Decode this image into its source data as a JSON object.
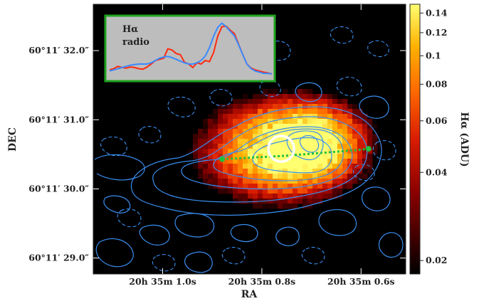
{
  "chart_data": {
    "type": "heatmap",
    "xlabel": "RA",
    "ylabel": "DEC",
    "colorbar_label": "Hα (ADU)",
    "colorbar_scale": "log",
    "colorbar_range": [
      0.018,
      0.15
    ],
    "colorbar_ticks": [
      {
        "value": 0.14,
        "label": "0.14"
      },
      {
        "value": 0.12,
        "label": "0.12"
      },
      {
        "value": 0.1,
        "label": "0.1"
      },
      {
        "value": 0.08,
        "label": "0.08"
      },
      {
        "value": 0.06,
        "label": "0.06"
      },
      {
        "value": 0.04,
        "label": "0.04"
      },
      {
        "value": 0.02,
        "label": "0.02"
      }
    ],
    "x_ticks": [
      {
        "value": 1.0,
        "label": "20h 35m 1.0s"
      },
      {
        "value": 0.8,
        "label": "20h 35m 0.8s"
      },
      {
        "value": 0.6,
        "label": "20h 35m 0.6s"
      }
    ],
    "y_ticks": [
      {
        "value": 32.0,
        "label": "60°11′ 32.0″"
      },
      {
        "value": 31.0,
        "label": "60°11′ 31.0″"
      },
      {
        "value": 30.0,
        "label": "60°11′ 30.0″"
      },
      {
        "value": 29.0,
        "label": "60°11′ 29.0″"
      }
    ],
    "xlim": [
      1.14,
      0.51
    ],
    "ylim": [
      28.77,
      32.67
    ],
    "emission_peaks": [
      {
        "ra": 0.772,
        "dec": 30.55,
        "sigma_ra": 0.085,
        "sigma_dec": 0.42,
        "amp": 0.14
      },
      {
        "ra": 0.695,
        "dec": 30.68,
        "sigma_ra": 0.06,
        "sigma_dec": 0.33,
        "amp": 0.13
      }
    ],
    "marker_circle": {
      "ra": 0.761,
      "dec": 30.58
    },
    "slice_path": [
      {
        "ra": 0.88,
        "dec": 30.43
      },
      {
        "ra": 0.75,
        "dec": 30.48
      },
      {
        "ra": 0.61,
        "dec": 30.56
      },
      {
        "ra": 0.585,
        "dec": 30.58
      }
    ],
    "inset": {
      "legend": [
        {
          "name": "Hα",
          "color": "#ff2a10"
        },
        {
          "name": "radio",
          "color": "#3a8aff"
        }
      ],
      "series": [
        {
          "name": "Hα",
          "color": "#ff2a10",
          "values": [
            0.12,
            0.14,
            0.18,
            0.16,
            0.15,
            0.17,
            0.16,
            0.14,
            0.13,
            0.17,
            0.22,
            0.28,
            0.3,
            0.32,
            0.48,
            0.46,
            0.4,
            0.38,
            0.25,
            0.22,
            0.16,
            0.24,
            0.22,
            0.28,
            0.26,
            0.42,
            0.7,
            0.86,
            0.87,
            0.8,
            0.74,
            0.56,
            0.38,
            0.22,
            0.15,
            0.12,
            0.1,
            0.08,
            0.07,
            0.05
          ]
        },
        {
          "name": "radio",
          "color": "#3a8aff",
          "values": [
            0.1,
            0.12,
            0.14,
            0.16,
            0.18,
            0.2,
            0.21,
            0.22,
            0.22,
            0.22,
            0.24,
            0.28,
            0.32,
            0.34,
            0.35,
            0.33,
            0.3,
            0.27,
            0.24,
            0.22,
            0.22,
            0.24,
            0.28,
            0.36,
            0.5,
            0.7,
            0.85,
            0.92,
            0.86,
            0.78,
            0.7,
            0.55,
            0.38,
            0.22,
            0.14,
            0.1,
            0.08,
            0.06,
            0.06,
            0.05
          ]
        }
      ]
    }
  }
}
